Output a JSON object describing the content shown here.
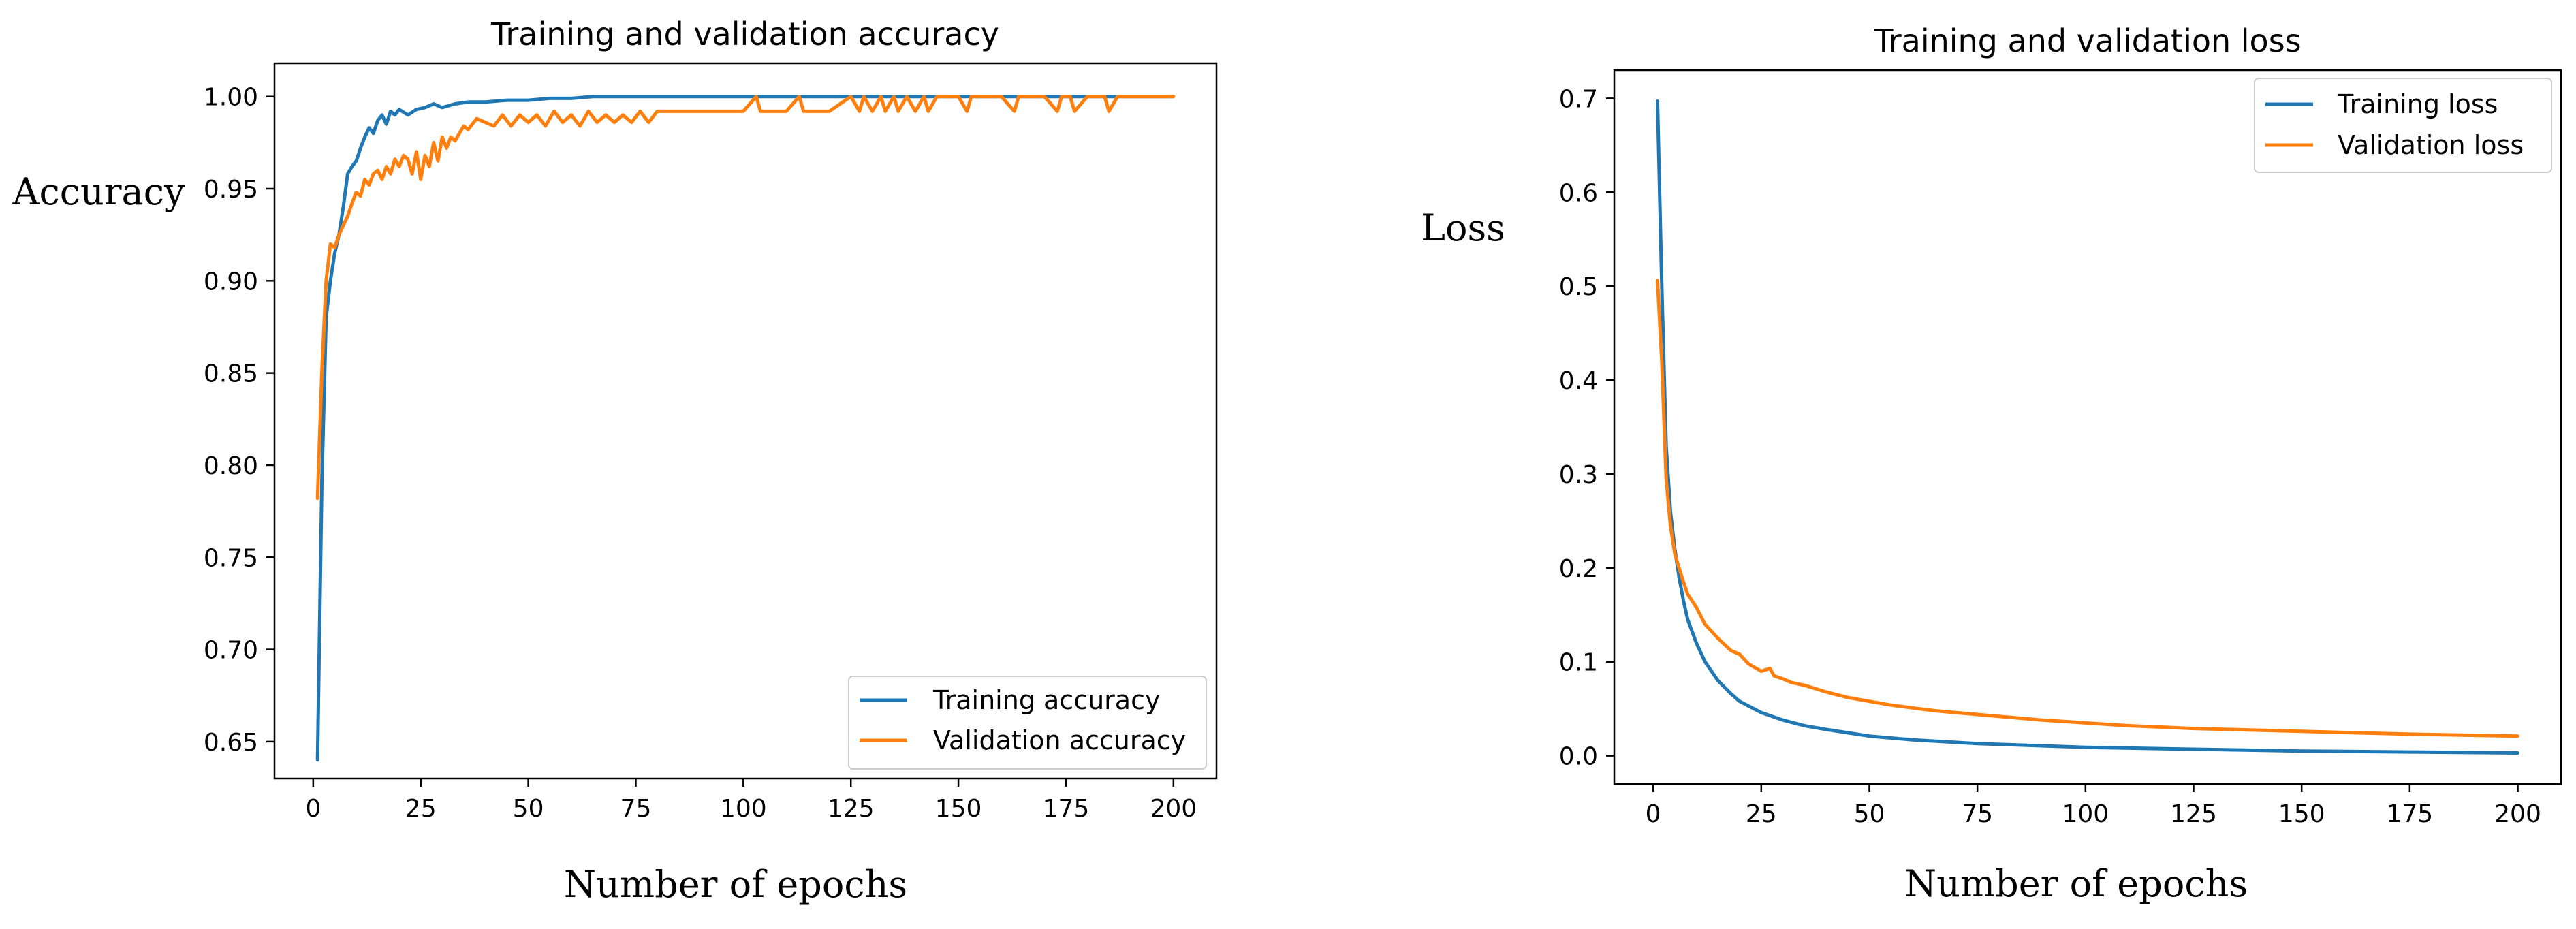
{
  "chart_data": [
    {
      "type": "line",
      "title": "Training and validation accuracy",
      "xlabel": "Number of epochs",
      "ylabel": "Accuracy",
      "xlim": [
        -9,
        210
      ],
      "ylim": [
        0.63,
        1.018
      ],
      "xticks": [
        0,
        25,
        50,
        75,
        100,
        125,
        150,
        175,
        200
      ],
      "xtick_labels": [
        "0",
        "25",
        "50",
        "75",
        "100",
        "125",
        "150",
        "175",
        "200"
      ],
      "yticks": [
        0.65,
        0.7,
        0.75,
        0.8,
        0.85,
        0.9,
        0.95,
        1.0
      ],
      "ytick_labels": [
        "0.65",
        "0.70",
        "0.75",
        "0.80",
        "0.85",
        "0.90",
        "0.95",
        "1.00"
      ],
      "legend_position": "lower-right",
      "series": [
        {
          "name": "Training accuracy",
          "color": "#1f77b4",
          "x": [
            1,
            2,
            3,
            4,
            5,
            6,
            7,
            8,
            9,
            10,
            11,
            12,
            13,
            14,
            15,
            16,
            17,
            18,
            19,
            20,
            22,
            24,
            26,
            28,
            30,
            33,
            36,
            40,
            45,
            50,
            55,
            60,
            65,
            70,
            80,
            90,
            100,
            125,
            150,
            175,
            200
          ],
          "y": [
            0.64,
            0.79,
            0.88,
            0.9,
            0.915,
            0.925,
            0.94,
            0.958,
            0.962,
            0.965,
            0.972,
            0.978,
            0.983,
            0.98,
            0.987,
            0.99,
            0.985,
            0.992,
            0.99,
            0.993,
            0.99,
            0.993,
            0.994,
            0.996,
            0.994,
            0.996,
            0.997,
            0.997,
            0.998,
            0.998,
            0.999,
            0.999,
            1.0,
            1.0,
            1.0,
            1.0,
            1.0,
            1.0,
            1.0,
            1.0,
            1.0
          ]
        },
        {
          "name": "Validation accuracy",
          "color": "#ff7f0e",
          "x": [
            1,
            2,
            3,
            4,
            5,
            6,
            7,
            8,
            9,
            10,
            11,
            12,
            13,
            14,
            15,
            16,
            17,
            18,
            19,
            20,
            21,
            22,
            23,
            24,
            25,
            26,
            27,
            28,
            29,
            30,
            31,
            32,
            33,
            34,
            35,
            36,
            38,
            40,
            42,
            44,
            46,
            48,
            50,
            52,
            54,
            56,
            58,
            60,
            62,
            64,
            66,
            68,
            70,
            72,
            74,
            76,
            78,
            80,
            90,
            100,
            103,
            104,
            105,
            110,
            113,
            114,
            115,
            120,
            125,
            127,
            128,
            130,
            132,
            133,
            135,
            136,
            138,
            140,
            142,
            143,
            145,
            150,
            152,
            153,
            155,
            160,
            163,
            164,
            165,
            170,
            173,
            174,
            176,
            177,
            180,
            184,
            185,
            187,
            190,
            200
          ],
          "y": [
            0.782,
            0.85,
            0.9,
            0.92,
            0.918,
            0.925,
            0.93,
            0.935,
            0.942,
            0.948,
            0.946,
            0.955,
            0.952,
            0.958,
            0.96,
            0.955,
            0.962,
            0.958,
            0.966,
            0.962,
            0.968,
            0.966,
            0.958,
            0.97,
            0.955,
            0.968,
            0.962,
            0.975,
            0.965,
            0.978,
            0.972,
            0.978,
            0.976,
            0.98,
            0.984,
            0.982,
            0.988,
            0.986,
            0.984,
            0.99,
            0.984,
            0.99,
            0.986,
            0.99,
            0.984,
            0.992,
            0.986,
            0.99,
            0.984,
            0.992,
            0.986,
            0.99,
            0.986,
            0.99,
            0.986,
            0.992,
            0.986,
            0.992,
            0.992,
            0.992,
            1.0,
            0.992,
            0.992,
            0.992,
            1.0,
            0.992,
            0.992,
            0.992,
            1.0,
            0.992,
            1.0,
            0.992,
            1.0,
            0.992,
            1.0,
            0.992,
            1.0,
            0.992,
            1.0,
            0.992,
            1.0,
            1.0,
            0.992,
            1.0,
            1.0,
            1.0,
            0.992,
            1.0,
            1.0,
            1.0,
            0.992,
            1.0,
            1.0,
            0.992,
            1.0,
            1.0,
            0.992,
            1.0,
            1.0,
            1.0
          ]
        }
      ]
    },
    {
      "type": "line",
      "title": "Training and validation loss",
      "xlabel": "Number of epochs",
      "ylabel": "Loss",
      "xlim": [
        -9,
        210
      ],
      "ylim": [
        -0.03,
        0.73
      ],
      "xticks": [
        0,
        25,
        50,
        75,
        100,
        125,
        150,
        175,
        200
      ],
      "xtick_labels": [
        "0",
        "25",
        "50",
        "75",
        "100",
        "125",
        "150",
        "175",
        "200"
      ],
      "yticks": [
        0.0,
        0.1,
        0.2,
        0.3,
        0.4,
        0.5,
        0.6,
        0.7
      ],
      "ytick_labels": [
        "0.0",
        "0.1",
        "0.2",
        "0.3",
        "0.4",
        "0.5",
        "0.6",
        "0.7"
      ],
      "legend_position": "upper-right",
      "series": [
        {
          "name": "Training loss",
          "color": "#1f77b4",
          "x": [
            1,
            2,
            3,
            4,
            5,
            6,
            7,
            8,
            10,
            12,
            15,
            18,
            20,
            25,
            30,
            35,
            40,
            50,
            60,
            75,
            100,
            125,
            150,
            175,
            200
          ],
          "y": [
            0.697,
            0.5,
            0.33,
            0.26,
            0.22,
            0.19,
            0.165,
            0.145,
            0.12,
            0.1,
            0.08,
            0.066,
            0.058,
            0.046,
            0.038,
            0.032,
            0.028,
            0.021,
            0.017,
            0.013,
            0.009,
            0.007,
            0.005,
            0.004,
            0.003
          ]
        },
        {
          "name": "Validation loss",
          "color": "#ff7f0e",
          "x": [
            1,
            2,
            3,
            4,
            5,
            6,
            7,
            8,
            10,
            12,
            15,
            18,
            20,
            22,
            25,
            27,
            28,
            30,
            32,
            35,
            40,
            45,
            50,
            55,
            60,
            65,
            70,
            75,
            80,
            90,
            100,
            110,
            125,
            150,
            175,
            200
          ],
          "y": [
            0.506,
            0.42,
            0.295,
            0.245,
            0.215,
            0.2,
            0.185,
            0.172,
            0.158,
            0.14,
            0.125,
            0.112,
            0.108,
            0.098,
            0.09,
            0.093,
            0.085,
            0.082,
            0.078,
            0.075,
            0.068,
            0.062,
            0.058,
            0.054,
            0.051,
            0.048,
            0.046,
            0.044,
            0.042,
            0.038,
            0.035,
            0.032,
            0.029,
            0.026,
            0.023,
            0.021
          ]
        }
      ]
    }
  ]
}
